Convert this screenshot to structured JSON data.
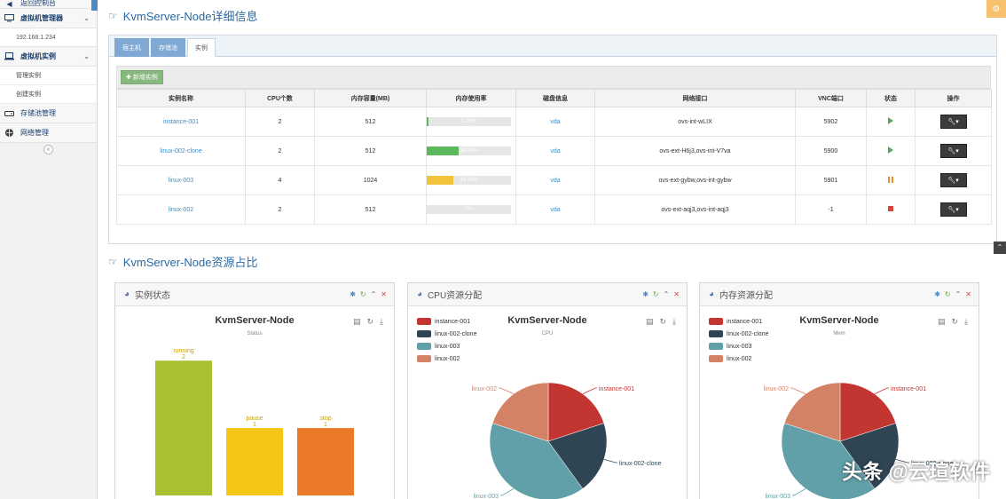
{
  "sidebar": {
    "back_label": "返回控制台",
    "vm_manager_label": "虚拟机管理器",
    "host_ip": "192.168.1.234",
    "vm_instance_label": "虚拟机实例",
    "manage_instance": "管理实例",
    "create_instance": "创建实例",
    "storage_pool": "存储池管理",
    "network_manage": "网络管理"
  },
  "detail": {
    "title": "KvmServer-Node详细信息",
    "tabs": [
      {
        "label": "宿主机"
      },
      {
        "label": "存储池"
      },
      {
        "label": "实例"
      }
    ],
    "add_button": "新增实例",
    "columns": [
      "实例名称",
      "CPU个数",
      "内存容量(MB)",
      "内存使用率",
      "磁盘信息",
      "网络接口",
      "VNC端口",
      "状态",
      "操作"
    ],
    "rows": [
      {
        "name": "instance-001",
        "cpu": "2",
        "mem": "512",
        "usage_text": "1.76%",
        "usage": 0.0176,
        "disk": "vda",
        "net": "ovs-int-wLIX",
        "vnc": "5902",
        "status": "running",
        "op": "▾"
      },
      {
        "name": "linux-002-clone",
        "cpu": "2",
        "mem": "512",
        "usage_text": "38.06%",
        "usage": 0.3806,
        "disk": "vda",
        "net": "ovs-ext-H6j3,ovs-int-V7va",
        "vnc": "5900",
        "status": "running",
        "op": "▾"
      },
      {
        "name": "linux-003",
        "cpu": "4",
        "mem": "1024",
        "usage_text": "31.48%",
        "usage": 0.3148,
        "disk": "vda",
        "net": "ovs-ext-gybw,ovs-int-gybw",
        "vnc": "5901",
        "status": "paused",
        "op": "▾"
      },
      {
        "name": "linux-002",
        "cpu": "2",
        "mem": "512",
        "usage_text": "0%",
        "usage": 0.0,
        "disk": "vda",
        "net": "ovs-ext-aqj3,ovs-int-aqj3",
        "vnc": "-1",
        "status": "stopped",
        "op": "▾"
      }
    ],
    "usage_colors": [
      "#5cb85c",
      "#5cb85c",
      "#f0c43a",
      "#cfcfcf"
    ]
  },
  "resources": {
    "title": "KvmServer-Node资源占比",
    "panels": [
      {
        "header": "实例状态"
      },
      {
        "header": "CPU资源分配"
      },
      {
        "header": "内存资源分配"
      }
    ]
  },
  "chart_data": [
    {
      "type": "bar",
      "title": "KvmServer-Node",
      "subtitle": "Status",
      "categories": [
        "running",
        "pause",
        "stop"
      ],
      "values": [
        2,
        1,
        1
      ],
      "colors": [
        "#a7c131",
        "#f5c518",
        "#ea7a2a"
      ],
      "ylim": [
        0,
        2.2
      ]
    },
    {
      "type": "pie",
      "title": "KvmServer-Node",
      "subtitle": "CPU",
      "labels": [
        "instance-001",
        "linux-002-clone",
        "linux-003",
        "linux-002"
      ],
      "values": [
        2,
        2,
        4,
        2
      ],
      "colors": [
        "#c23531",
        "#2f4554",
        "#61a0a8",
        "#d48265"
      ]
    },
    {
      "type": "pie",
      "title": "KvmServer-Node",
      "subtitle": "Mem",
      "labels": [
        "instance-001",
        "linux-002-clone",
        "linux-003",
        "linux-002"
      ],
      "values": [
        512,
        512,
        1024,
        512
      ],
      "colors": [
        "#c23531",
        "#2f4554",
        "#61a0a8",
        "#d48265"
      ]
    }
  ],
  "watermark": "头条 @云瑄软件"
}
